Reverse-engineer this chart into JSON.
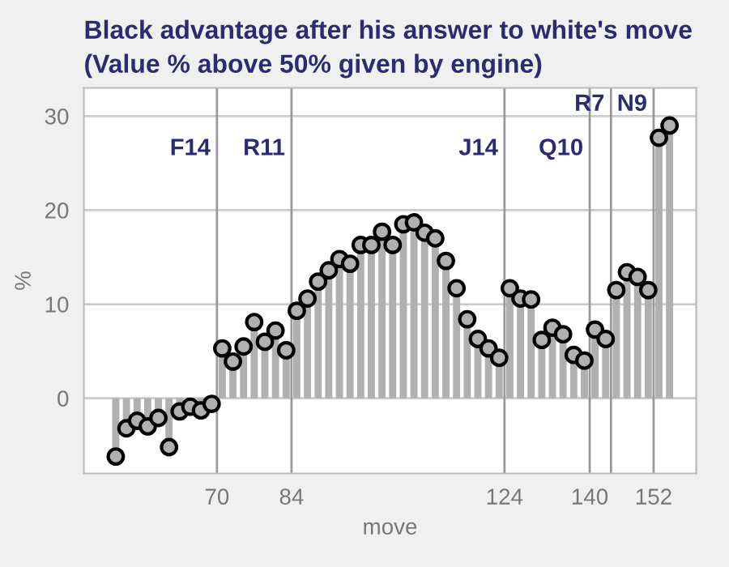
{
  "chart_data": {
    "type": "lollipop",
    "title": "Black advantage after his answer to white's move",
    "subtitle": "(Value % above 50% given by engine)",
    "xlabel": "move",
    "ylabel": "%",
    "x": [
      51,
      53,
      55,
      57,
      59,
      61,
      63,
      65,
      67,
      69,
      71,
      73,
      75,
      77,
      79,
      81,
      83,
      85,
      87,
      89,
      91,
      93,
      95,
      97,
      99,
      101,
      103,
      105,
      107,
      109,
      111,
      113,
      115,
      117,
      119,
      121,
      123,
      125,
      127,
      129,
      131,
      133,
      135,
      137,
      139,
      141,
      143,
      145,
      147,
      149,
      151,
      153,
      155
    ],
    "values": [
      -6.2,
      -3.2,
      -2.4,
      -3.0,
      -2.1,
      -5.2,
      -1.4,
      -0.9,
      -1.3,
      -0.6,
      5.3,
      3.9,
      5.5,
      8.1,
      6.0,
      7.2,
      5.1,
      9.3,
      10.6,
      12.4,
      13.6,
      14.8,
      14.3,
      16.3,
      16.3,
      17.7,
      16.3,
      18.5,
      18.7,
      17.6,
      17.0,
      14.6,
      11.7,
      8.4,
      6.3,
      5.3,
      4.3,
      11.7,
      10.6,
      10.5,
      6.2,
      7.5,
      6.8,
      4.6,
      4.0,
      7.3,
      6.3,
      11.5,
      13.4,
      12.9,
      11.5,
      27.7,
      29.0
    ],
    "color": "#b0b0b0",
    "marker": "circle",
    "xlim": [
      45,
      160
    ],
    "ylim": [
      -8,
      33
    ],
    "xticks": [
      70,
      84,
      124,
      140,
      152
    ],
    "yticks": [
      0,
      10,
      20,
      30
    ],
    "grid": "y",
    "ref_lines": [
      {
        "axis": "x",
        "value": 70,
        "label": "F14",
        "color": "#999999"
      },
      {
        "axis": "x",
        "value": 84,
        "label": "R11",
        "color": "#999999"
      },
      {
        "axis": "x",
        "value": 124,
        "label": "J14",
        "color": "#999999"
      },
      {
        "axis": "x",
        "value": 140,
        "label": "Q10",
        "color": "#999999"
      },
      {
        "axis": "x",
        "value": 144,
        "label": "R7",
        "color": "#999999"
      },
      {
        "axis": "x",
        "value": 152,
        "label": "N9",
        "color": "#999999"
      }
    ]
  }
}
